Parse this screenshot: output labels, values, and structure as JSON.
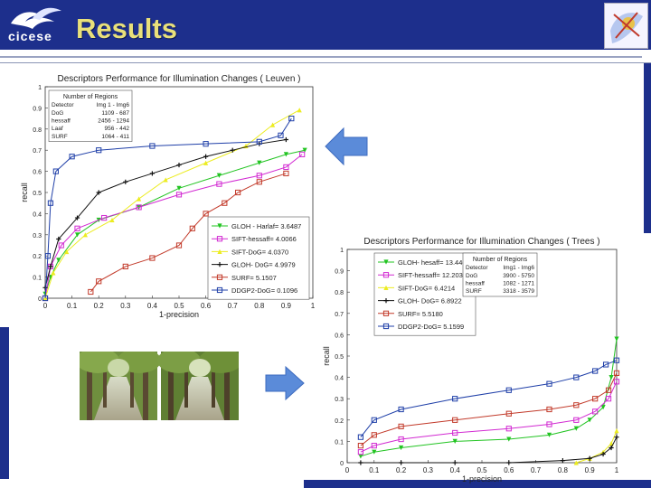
{
  "slide": {
    "title": "Results",
    "logo_text": "cicese"
  },
  "colors": {
    "header": "#1d2f8c",
    "title": "#e9e07a",
    "arrow": "#5b8bd9"
  },
  "chart_data": [
    {
      "type": "line",
      "title": "Descriptors Performance for Illumination Changes ( Leuven )",
      "xlabel": "1-precision",
      "ylabel": "recall",
      "xlim": [
        0,
        1
      ],
      "ylim": [
        0,
        1
      ],
      "x_ticks": [
        "0",
        "0.1",
        "0.2",
        "0.3",
        "0.4",
        "0.5",
        "0.6",
        "0.7",
        "0.8",
        "0.9",
        "1"
      ],
      "y_ticks": [
        "0",
        "0.1",
        "0.2",
        "0.3",
        "0.4",
        "0.5",
        "0.6",
        "0.7",
        "0.8",
        "0.9",
        "1"
      ],
      "regions_table": {
        "title": "Number of Regions",
        "header": [
          "Detector",
          "Img 1 - Img6"
        ],
        "rows": [
          [
            "DoG",
            "1109 - 687"
          ],
          [
            "hessaff",
            "2456 - 1294"
          ],
          [
            "Laaf",
            "956 - 442"
          ],
          [
            "SURF",
            "1064 - 411"
          ]
        ]
      },
      "series": [
        {
          "name": "GLOH - Harlaf= 3.6487",
          "color": "#22c422",
          "marker": "v",
          "x": [
            0.0,
            0.02,
            0.05,
            0.12,
            0.2,
            0.35,
            0.5,
            0.65,
            0.8,
            0.9,
            0.97
          ],
          "y": [
            0.02,
            0.1,
            0.18,
            0.3,
            0.37,
            0.43,
            0.52,
            0.58,
            0.64,
            0.68,
            0.7
          ]
        },
        {
          "name": "SIFT-hessaff= 4.0066",
          "color": "#d22ad2",
          "marker": "s",
          "x": [
            0.0,
            0.02,
            0.06,
            0.12,
            0.22,
            0.35,
            0.5,
            0.65,
            0.8,
            0.9,
            0.96
          ],
          "y": [
            0.0,
            0.15,
            0.25,
            0.33,
            0.38,
            0.43,
            0.49,
            0.54,
            0.58,
            0.62,
            0.68
          ]
        },
        {
          "name": "SIFT-DoG= 4.0370",
          "color": "#ecec20",
          "marker": "^",
          "x": [
            0.0,
            0.03,
            0.08,
            0.15,
            0.25,
            0.35,
            0.45,
            0.6,
            0.75,
            0.85,
            0.95
          ],
          "y": [
            0.0,
            0.12,
            0.22,
            0.3,
            0.37,
            0.47,
            0.56,
            0.64,
            0.72,
            0.82,
            0.89
          ]
        },
        {
          "name": "GLOH- DoG= 4.9979",
          "color": "#111111",
          "marker": "+",
          "x": [
            0.0,
            0.02,
            0.05,
            0.12,
            0.2,
            0.3,
            0.4,
            0.5,
            0.6,
            0.7,
            0.8,
            0.9
          ],
          "y": [
            0.05,
            0.15,
            0.28,
            0.38,
            0.5,
            0.55,
            0.59,
            0.63,
            0.67,
            0.7,
            0.73,
            0.75
          ]
        },
        {
          "name": "SURF= 5.1507",
          "color": "#c23a2a",
          "marker": "o",
          "x": [
            0.17,
            0.2,
            0.3,
            0.4,
            0.5,
            0.55,
            0.6,
            0.67,
            0.72,
            0.8,
            0.9
          ],
          "y": [
            0.03,
            0.08,
            0.15,
            0.19,
            0.25,
            0.33,
            0.4,
            0.45,
            0.5,
            0.55,
            0.59
          ]
        },
        {
          "name": "DDGP2-DoG= 0.1096",
          "color": "#1f3fa8",
          "marker": "s",
          "x": [
            0.0,
            0.01,
            0.02,
            0.04,
            0.1,
            0.2,
            0.4,
            0.6,
            0.8,
            0.88,
            0.92
          ],
          "y": [
            0.0,
            0.2,
            0.45,
            0.6,
            0.67,
            0.7,
            0.72,
            0.73,
            0.74,
            0.77,
            0.85
          ]
        }
      ]
    },
    {
      "type": "line",
      "title": "Descriptors Performance for Illumination Changes ( Trees )",
      "xlabel": "1-precision",
      "ylabel": "recall",
      "xlim": [
        0,
        1
      ],
      "ylim": [
        0,
        1
      ],
      "x_ticks": [
        "0",
        "0.1",
        "0.2",
        "0.3",
        "0.4",
        "0.5",
        "0.6",
        "0.7",
        "0.8",
        "0.9",
        "1"
      ],
      "y_ticks": [
        "0",
        "0.1",
        "0.2",
        "0.3",
        "0.4",
        "0.5",
        "0.6",
        "0.7",
        "0.8",
        "0.9",
        "1"
      ],
      "regions_table": {
        "title": "Number of Regions",
        "header": [
          "Detector",
          "Img1 - Img6"
        ],
        "rows": [
          [
            "DoG",
            "3900 - 5750"
          ],
          [
            "hessaff",
            "1082 - 1271"
          ],
          [
            "SURF",
            "3318 - 3579"
          ]
        ]
      },
      "series": [
        {
          "name": "GLOH- hesaff= 13.4461",
          "color": "#22c422",
          "marker": "v",
          "x": [
            0.05,
            0.1,
            0.2,
            0.4,
            0.6,
            0.75,
            0.85,
            0.9,
            0.95,
            0.98,
            1.0
          ],
          "y": [
            0.03,
            0.05,
            0.07,
            0.1,
            0.11,
            0.13,
            0.16,
            0.2,
            0.26,
            0.4,
            0.58
          ]
        },
        {
          "name": "SIFT-hessaff= 12.2035",
          "color": "#d22ad2",
          "marker": "s",
          "x": [
            0.05,
            0.1,
            0.2,
            0.4,
            0.6,
            0.75,
            0.85,
            0.92,
            0.97,
            1.0
          ],
          "y": [
            0.05,
            0.08,
            0.11,
            0.14,
            0.16,
            0.18,
            0.2,
            0.24,
            0.3,
            0.38
          ]
        },
        {
          "name": "SIFT-DoG= 6.4214",
          "color": "#ecec20",
          "marker": "^",
          "x": [
            0.85,
            0.9,
            0.95,
            0.98,
            1.0
          ],
          "y": [
            0.0,
            0.02,
            0.05,
            0.09,
            0.15
          ]
        },
        {
          "name": "GLOH- DoG= 6.8922",
          "color": "#111111",
          "marker": "+",
          "x": [
            0.05,
            0.2,
            0.4,
            0.6,
            0.8,
            0.9,
            0.95,
            0.98,
            1.0
          ],
          "y": [
            0.0,
            0.0,
            0.0,
            0.0,
            0.01,
            0.02,
            0.04,
            0.07,
            0.12
          ]
        },
        {
          "name": "SURF= 5.5180",
          "color": "#c23a2a",
          "marker": "o",
          "x": [
            0.05,
            0.1,
            0.2,
            0.4,
            0.6,
            0.75,
            0.85,
            0.92,
            0.97,
            1.0
          ],
          "y": [
            0.08,
            0.13,
            0.17,
            0.2,
            0.23,
            0.25,
            0.27,
            0.3,
            0.34,
            0.42
          ]
        },
        {
          "name": "DDGP2-DoG= 5.1599",
          "color": "#1f3fa8",
          "marker": "s",
          "x": [
            0.05,
            0.1,
            0.2,
            0.4,
            0.6,
            0.75,
            0.85,
            0.92,
            0.96,
            1.0
          ],
          "y": [
            0.12,
            0.2,
            0.25,
            0.3,
            0.34,
            0.37,
            0.4,
            0.43,
            0.46,
            0.48
          ]
        }
      ]
    }
  ]
}
